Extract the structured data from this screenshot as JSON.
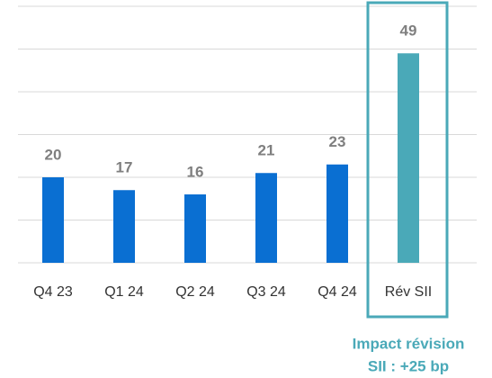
{
  "chart_data": {
    "type": "bar",
    "categories": [
      "Q4 23",
      "Q1 24",
      "Q2 24",
      "Q3 24",
      "Q4 24",
      "Rév SII"
    ],
    "values": [
      20,
      17,
      16,
      21,
      23,
      49
    ],
    "colors": [
      "#0a6fd2",
      "#0a6fd2",
      "#0a6fd2",
      "#0a6fd2",
      "#0a6fd2",
      "#4aa9b8"
    ],
    "ylim": [
      0,
      60
    ],
    "yticks": [
      0,
      10,
      20,
      30,
      40,
      50,
      60
    ],
    "grid": true,
    "highlight_index": 5,
    "annotation": [
      "Impact révision",
      "SII : +25 bp"
    ]
  }
}
